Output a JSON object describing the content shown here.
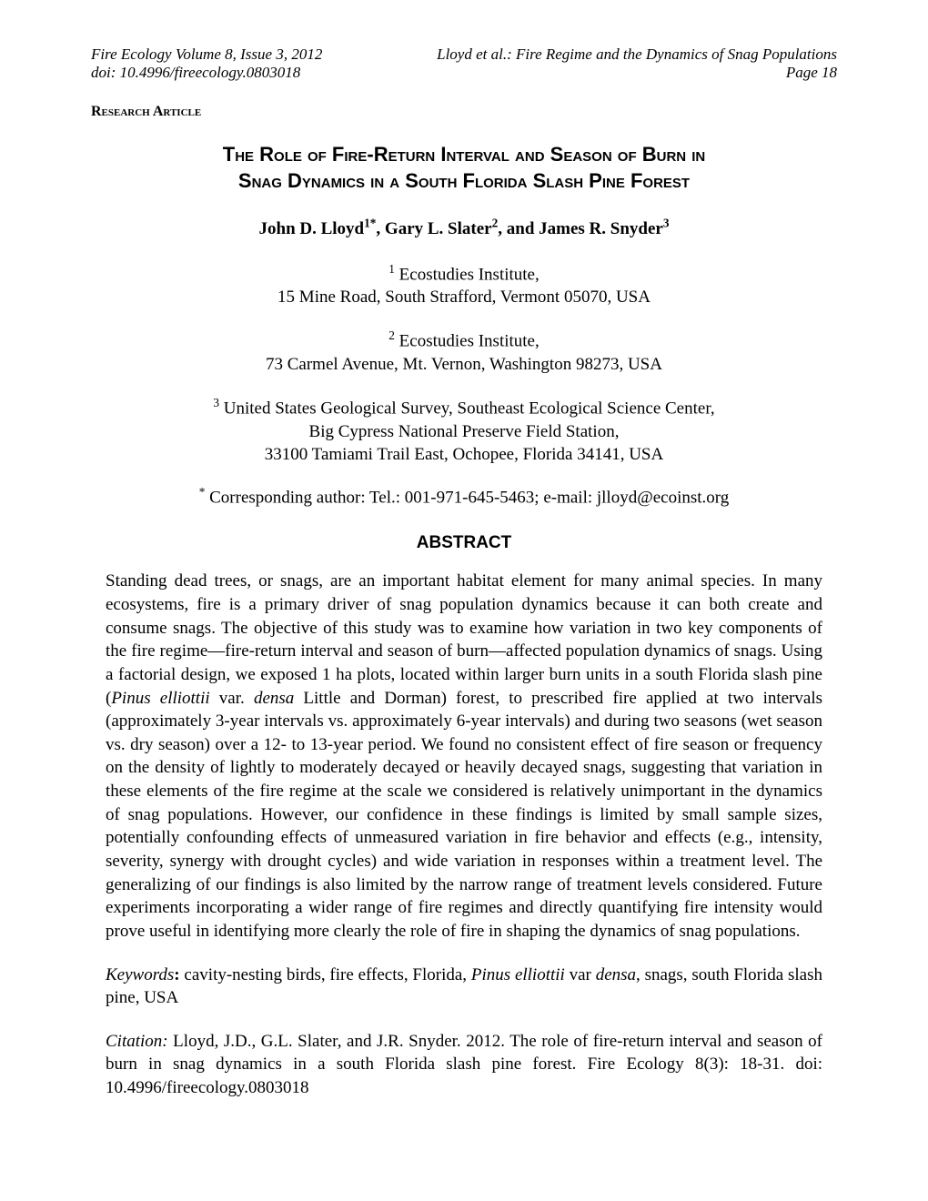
{
  "header": {
    "left_line1": "Fire Ecology Volume 8, Issue 3, 2012",
    "left_line2": "doi: 10.4996/fireecology.0803018",
    "right_line1": "Lloyd et al.: Fire Regime and the Dynamics of Snag Populations",
    "right_line2": "Page 18"
  },
  "article_type": "Research Article",
  "title_line1": "The Role of Fire-Return Interval and Season of Burn in",
  "title_line2": "Snag Dynamics in a South Florida Slash Pine Forest",
  "authors_html": "John D. Lloyd<sup>1*</sup>, Gary L. Slater<sup>2</sup>, and James R. Snyder<sup>3</sup>",
  "affiliations": [
    {
      "sup": "1",
      "line1": " Ecostudies Institute,",
      "line2": "15 Mine Road, South Strafford, Vermont 05070, USA"
    },
    {
      "sup": "2",
      "line1": " Ecostudies Institute,",
      "line2": "73 Carmel Avenue, Mt. Vernon, Washington 98273, USA"
    },
    {
      "sup": "3",
      "line1": " United States Geological Survey, Southeast Ecological Science Center,",
      "line2": "Big Cypress National Preserve Field Station,",
      "line3": "33100 Tamiami Trail East, Ochopee, Florida 34141, USA"
    }
  ],
  "corresponding_sup": "*",
  "corresponding_text": " Corresponding author: Tel.: 001-971-645-5463; e-mail: jlloyd@ecoinst.org",
  "abstract_heading": "ABSTRACT",
  "abstract_text": "Standing dead trees, or snags, are an important habitat element for many animal species. In many ecosystems, fire is a primary driver of snag population dynamics because it can both create and consume snags.  The objective of this study was to examine how variation in two key components of the fire regime—fire-return interval and season of burn—affected population dynamics of snags.  Using a factorial design, we exposed 1 ha plots, located within larger burn units in a south Florida slash pine (",
  "abstract_species": "Pinus elliottii",
  "abstract_text2": " var. ",
  "abstract_species2": "densa",
  "abstract_text3": " Little and Dorman) forest, to prescribed fire applied at two intervals (approximately 3-year intervals vs. approximately 6-year intervals) and during two seasons (wet season vs. dry season) over a 12- to 13-year period.  We found no consistent effect of fire season or frequency on the density of lightly to moderately decayed or heavily decayed snags, suggesting that variation in these elements of the fire regime at the scale we considered is relatively unimportant in the dynamics of snag populations.  However, our confidence in these findings is limited by small sample sizes, potentially confounding effects of unmeasured variation in fire behavior and effects (e.g., intensity, severity, synergy with drought cycles) and wide variation in responses within a treatment level.  The generalizing of our findings is also limited by the narrow range of treatment levels considered.  Future experiments incorporating a wider range of fire regimes and directly quantifying fire intensity would prove useful in identifying more clearly the role of fire in shaping the dynamics of snag populations.",
  "keywords_label": "Keywords",
  "keywords_text": ":  cavity-nesting birds, fire effects, Florida, ",
  "keywords_species": "Pinus elliottii",
  "keywords_text2": " var ",
  "keywords_species2": "densa",
  "keywords_text3": ", snags, south Florida slash pine, USA",
  "citation_label": "Citation:",
  "citation_text": "  Lloyd, J.D., G.L. Slater, and J.R. Snyder.  2012.  The role of fire-return interval and season of burn in snag dynamics in a south Florida slash pine forest.  Fire Ecology 8(3): 18-31. doi: 10.4996/fireecology.0803018"
}
